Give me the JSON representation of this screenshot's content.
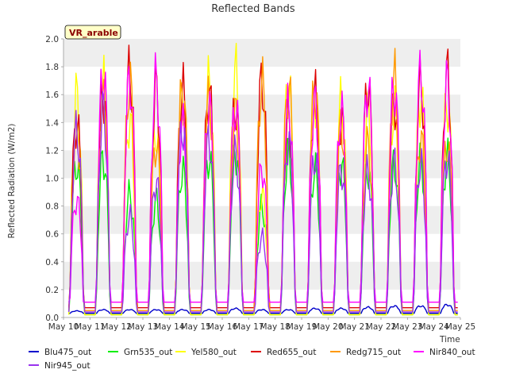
{
  "chart_data": {
    "type": "line",
    "title": "Reflected Bands",
    "xlabel": "Time",
    "ylabel": "Reflected Radiation (W/m2)",
    "badge": "VR_arable",
    "ylim": [
      0.0,
      2.0
    ],
    "xlim": [
      10,
      25
    ],
    "grid": "horizontal-bands",
    "legend_placement": "bottom",
    "yticks": [
      "0.0",
      "0.2",
      "0.4",
      "0.6",
      "0.8",
      "1.0",
      "1.2",
      "1.4",
      "1.6",
      "1.8",
      "2.0"
    ],
    "xticks": [
      "May 10",
      "May 11",
      "May 12",
      "May 13",
      "May 14",
      "May 15",
      "May 16",
      "May 17",
      "May 18",
      "May 19",
      "May 20",
      "May 21",
      "May 22",
      "May 23",
      "May 24",
      "May 25"
    ],
    "x_days": [
      10.5,
      11.5,
      12.5,
      13.5,
      14.5,
      15.5,
      16.5,
      17.5,
      18.5,
      19.5,
      20.5,
      21.5,
      22.5,
      23.5,
      24.5
    ],
    "series": [
      {
        "name": "Blu475_out",
        "color": "#0000cc",
        "base": 0.03,
        "peaks": [
          0.05,
          0.06,
          0.06,
          0.06,
          0.06,
          0.06,
          0.07,
          0.06,
          0.06,
          0.07,
          0.07,
          0.08,
          0.09,
          0.09,
          0.1
        ]
      },
      {
        "name": "Grn535_out",
        "color": "#00ee00",
        "base": 0.02,
        "peaks": [
          1.25,
          1.3,
          1.0,
          0.95,
          1.2,
          1.3,
          1.35,
          0.9,
          1.35,
          1.2,
          1.25,
          1.2,
          1.25,
          1.28,
          1.3
        ]
      },
      {
        "name": "Yel580_out",
        "color": "#ffff00",
        "base": 0.02,
        "peaks": [
          1.8,
          1.9,
          1.6,
          1.5,
          1.8,
          1.9,
          2.0,
          1.0,
          1.9,
          1.8,
          1.75,
          1.7,
          1.7,
          1.8,
          1.75
        ]
      },
      {
        "name": "Red655_out",
        "color": "#dd0000",
        "base": 0.07,
        "peaks": [
          1.58,
          1.82,
          2.0,
          1.85,
          1.85,
          1.82,
          1.72,
          1.92,
          1.62,
          1.8,
          1.6,
          1.88,
          1.76,
          1.9,
          1.98
        ]
      },
      {
        "name": "Redg715_out",
        "color": "#ff9900",
        "base": 0.05,
        "peaks": [
          1.5,
          1.75,
          1.9,
          1.4,
          1.86,
          1.76,
          1.65,
          1.9,
          1.88,
          1.85,
          1.55,
          1.4,
          1.95,
          1.45,
          1.4
        ]
      },
      {
        "name": "Nir840_out",
        "color": "#ff00ff",
        "base": 0.11,
        "peaks": [
          0.94,
          1.96,
          1.92,
          1.92,
          1.56,
          1.7,
          1.7,
          1.2,
          1.7,
          1.72,
          1.66,
          1.87,
          1.87,
          1.97,
          1.9
        ]
      },
      {
        "name": "Nir945_out",
        "color": "#9933ee",
        "base": 0.04,
        "peaks": [
          1.52,
          1.68,
          0.82,
          1.1,
          1.54,
          1.45,
          1.33,
          0.65,
          1.42,
          1.3,
          1.2,
          1.18,
          1.25,
          1.25,
          1.3
        ]
      }
    ]
  }
}
